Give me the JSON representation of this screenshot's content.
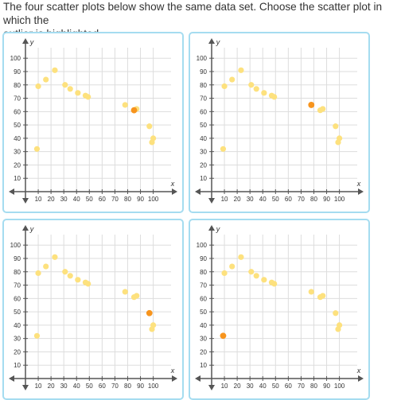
{
  "question": {
    "line1": "The four scatter plots below show the same data set. Choose the scatter plot in which the",
    "line2": "outlier is highlighted."
  },
  "colors": {
    "point": "#fde17e",
    "highlight": "#f7941d",
    "axis": "#555555",
    "grid": "#dddddd",
    "border": "#a5dcf0"
  },
  "chart_data": [
    {
      "type": "scatter",
      "xlabel": "x",
      "ylabel": "y",
      "xlim": [
        0,
        100
      ],
      "ylim": [
        0,
        100
      ],
      "xticks": [
        "10",
        "20",
        "30",
        "40",
        "50",
        "60",
        "70",
        "80",
        "90",
        "100"
      ],
      "yticks": [
        "10",
        "20",
        "30",
        "40",
        "50",
        "60",
        "70",
        "80",
        "90",
        "100"
      ],
      "points": [
        [
          9,
          32
        ],
        [
          10,
          79
        ],
        [
          16,
          84
        ],
        [
          23,
          91
        ],
        [
          31,
          80
        ],
        [
          35,
          77
        ],
        [
          41,
          74
        ],
        [
          47,
          72
        ],
        [
          49,
          71
        ],
        [
          78,
          65
        ],
        [
          85,
          61
        ],
        [
          87,
          62
        ],
        [
          97,
          49
        ],
        [
          99,
          37
        ],
        [
          100,
          40
        ]
      ],
      "highlighted_point": [
        85,
        61
      ]
    },
    {
      "type": "scatter",
      "xlabel": "x",
      "ylabel": "y",
      "xlim": [
        0,
        100
      ],
      "ylim": [
        0,
        100
      ],
      "xticks": [
        "10",
        "20",
        "30",
        "40",
        "50",
        "60",
        "70",
        "80",
        "90",
        "100"
      ],
      "yticks": [
        "10",
        "20",
        "30",
        "40",
        "50",
        "60",
        "70",
        "80",
        "90",
        "100"
      ],
      "points": [
        [
          9,
          32
        ],
        [
          10,
          79
        ],
        [
          16,
          84
        ],
        [
          23,
          91
        ],
        [
          31,
          80
        ],
        [
          35,
          77
        ],
        [
          41,
          74
        ],
        [
          47,
          72
        ],
        [
          49,
          71
        ],
        [
          78,
          65
        ],
        [
          85,
          61
        ],
        [
          87,
          62
        ],
        [
          97,
          49
        ],
        [
          99,
          37
        ],
        [
          100,
          40
        ]
      ],
      "highlighted_point": [
        78,
        65
      ]
    },
    {
      "type": "scatter",
      "xlabel": "x",
      "ylabel": "y",
      "xlim": [
        0,
        100
      ],
      "ylim": [
        0,
        100
      ],
      "xticks": [
        "10",
        "20",
        "30",
        "40",
        "50",
        "60",
        "70",
        "80",
        "90",
        "100"
      ],
      "yticks": [
        "10",
        "20",
        "30",
        "40",
        "50",
        "60",
        "70",
        "80",
        "90",
        "100"
      ],
      "points": [
        [
          9,
          32
        ],
        [
          10,
          79
        ],
        [
          16,
          84
        ],
        [
          23,
          91
        ],
        [
          31,
          80
        ],
        [
          35,
          77
        ],
        [
          41,
          74
        ],
        [
          47,
          72
        ],
        [
          49,
          71
        ],
        [
          78,
          65
        ],
        [
          85,
          61
        ],
        [
          87,
          62
        ],
        [
          97,
          49
        ],
        [
          99,
          37
        ],
        [
          100,
          40
        ]
      ],
      "highlighted_point": [
        97,
        49
      ]
    },
    {
      "type": "scatter",
      "xlabel": "x",
      "ylabel": "y",
      "xlim": [
        0,
        100
      ],
      "ylim": [
        0,
        100
      ],
      "xticks": [
        "10",
        "20",
        "30",
        "40",
        "50",
        "60",
        "70",
        "80",
        "90",
        "100"
      ],
      "yticks": [
        "10",
        "20",
        "30",
        "40",
        "50",
        "60",
        "70",
        "80",
        "90",
        "100"
      ],
      "points": [
        [
          9,
          32
        ],
        [
          10,
          79
        ],
        [
          16,
          84
        ],
        [
          23,
          91
        ],
        [
          31,
          80
        ],
        [
          35,
          77
        ],
        [
          41,
          74
        ],
        [
          47,
          72
        ],
        [
          49,
          71
        ],
        [
          78,
          65
        ],
        [
          85,
          61
        ],
        [
          87,
          62
        ],
        [
          97,
          49
        ],
        [
          99,
          37
        ],
        [
          100,
          40
        ]
      ],
      "highlighted_point": [
        9,
        32
      ]
    }
  ]
}
